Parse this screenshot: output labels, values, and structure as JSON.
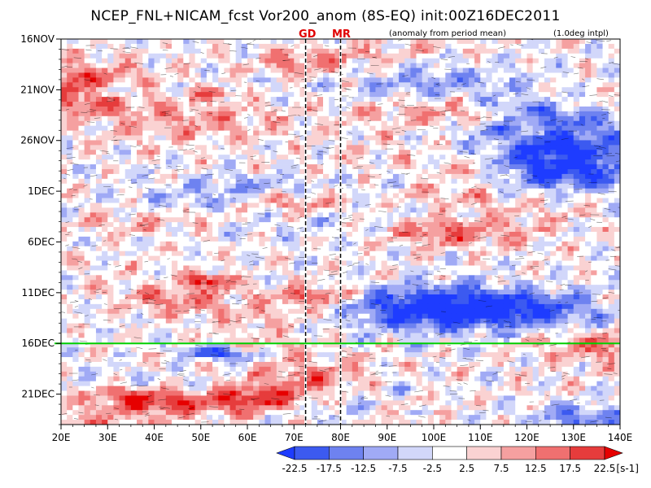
{
  "chart_data": {
    "type": "heatmap",
    "title": "NCEP_FNL+NICAM_fcst Vor200_anom (8S-EQ) init:00Z16DEC2011",
    "subtitle": "(anomaly from period mean)",
    "interpolation_note": "(1.0deg intpl)",
    "xlabel": "",
    "ylabel": "",
    "x_axis": {
      "type": "longitude",
      "range_deg": [
        20,
        140
      ],
      "ticks": [
        "20E",
        "30E",
        "40E",
        "50E",
        "60E",
        "70E",
        "80E",
        "90E",
        "100E",
        "110E",
        "120E",
        "130E",
        "140E"
      ]
    },
    "y_axis": {
      "type": "time",
      "range": [
        "16NOV2011",
        "24DEC2011"
      ],
      "direction": "downward",
      "ticks": [
        "16NOV",
        "21NOV",
        "26NOV",
        "1DEC",
        "6DEC",
        "11DEC",
        "16DEC",
        "21DEC"
      ]
    },
    "reference_lines": [
      {
        "label": "GD",
        "lon": 72.5,
        "style": "dashed",
        "color": "#000000"
      },
      {
        "label": "MR",
        "lon": 80,
        "style": "dashed",
        "color": "#000000"
      }
    ],
    "forecast_init_line": {
      "date": "16DEC",
      "color": "#00d000"
    },
    "colorbar": {
      "levels": [
        "-22.5",
        "-17.5",
        "-12.5",
        "-7.5",
        "-2.5",
        "2.5",
        "7.5",
        "12.5",
        "17.5",
        "22.5"
      ],
      "units": "[s-1]",
      "colors": [
        "#1e3cff",
        "#3c5af0",
        "#6e82f0",
        "#a0aaf5",
        "#d2d7fa",
        "#ffffff",
        "#fad2d2",
        "#f5a0a0",
        "#f07070",
        "#e63c3c",
        "#e60000"
      ]
    },
    "grid": false
  }
}
